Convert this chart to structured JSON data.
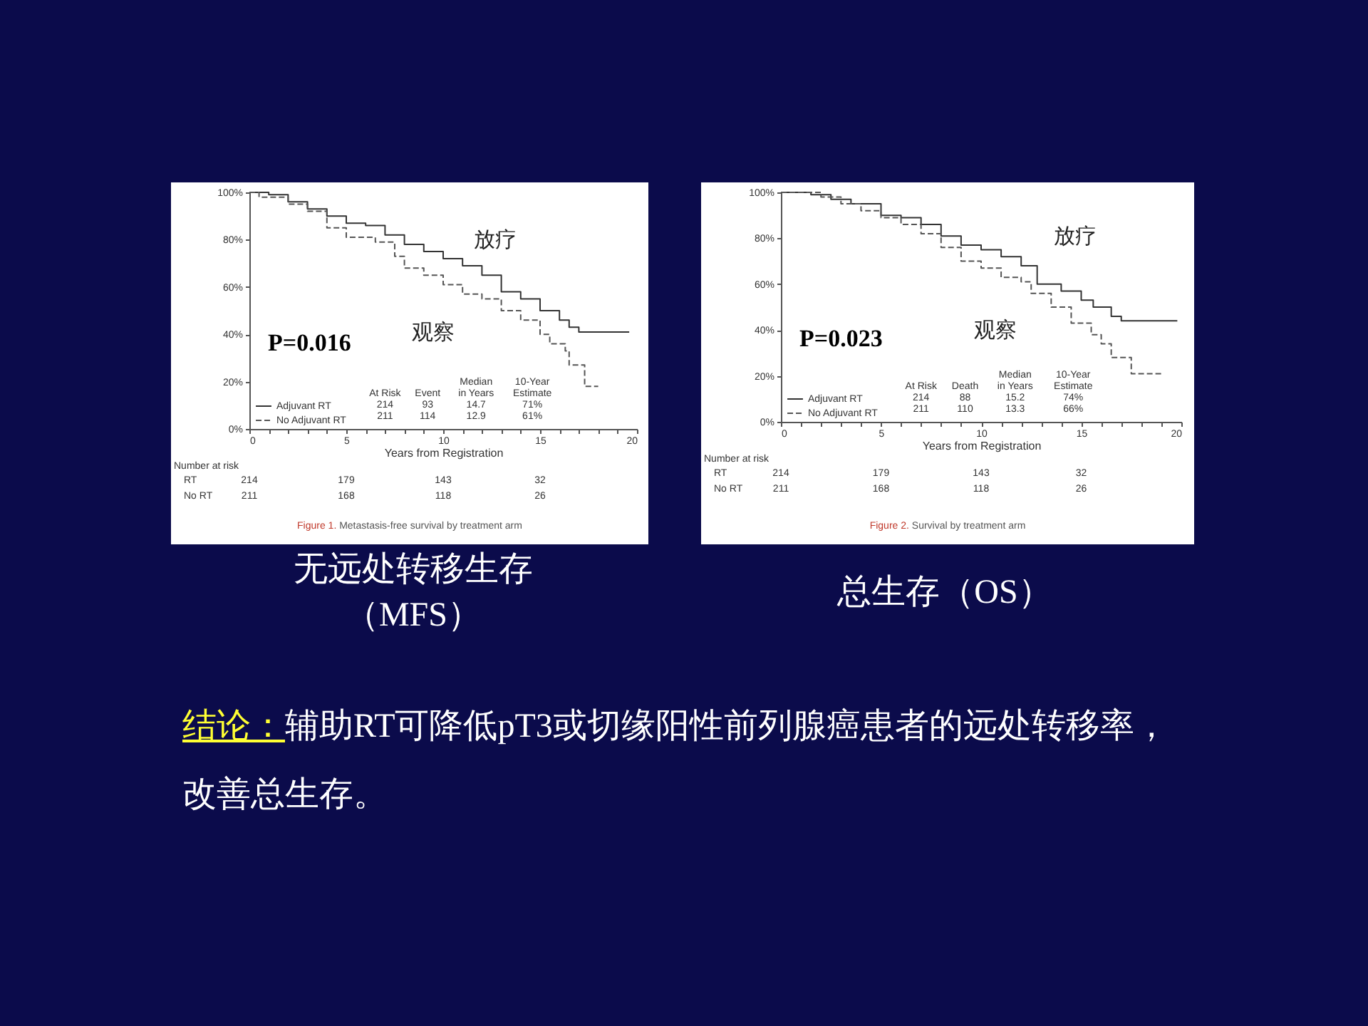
{
  "chart_data": [
    {
      "type": "step",
      "xlabel": "Years from Registration",
      "xlim": [
        0,
        20
      ],
      "xticks": [
        0,
        {
          "value": 1,
          "label": null
        },
        {
          "value": 2,
          "label": null
        },
        {
          "value": 3,
          "label": null
        },
        {
          "value": 4,
          "label": null
        },
        5,
        {
          "value": 6,
          "label": null
        },
        {
          "value": 7,
          "label": null
        },
        {
          "value": 8,
          "label": null
        },
        {
          "value": 9,
          "label": null
        },
        10,
        {
          "value": 11,
          "label": null
        },
        {
          "value": 12,
          "label": null
        },
        {
          "value": 13,
          "label": null
        },
        {
          "value": 14,
          "label": null
        },
        15,
        {
          "value": 16,
          "label": null
        },
        {
          "value": 17,
          "label": null
        },
        {
          "value": 18,
          "label": null
        },
        {
          "value": 19,
          "label": null
        },
        20
      ],
      "ylim": [
        0,
        100
      ],
      "yticks": [
        {
          "value": 0,
          "label": "0%"
        },
        {
          "value": 20,
          "label": "20%"
        },
        {
          "value": 40,
          "label": "40%"
        },
        {
          "value": 60,
          "label": "60%"
        },
        {
          "value": 80,
          "label": "80%"
        },
        {
          "value": 100,
          "label": "100%"
        }
      ],
      "grid": false,
      "legend": "bottom left",
      "series": [
        {
          "name": "Adjuvant RT",
          "color": "#333333",
          "line_style": "solid",
          "x": [
            0,
            1,
            2,
            3,
            4,
            5,
            6,
            7,
            8,
            9,
            10,
            11,
            12,
            13,
            14,
            15,
            16,
            16.5,
            17,
            19.6
          ],
          "values": [
            100,
            99,
            96,
            93,
            90,
            87,
            86,
            82,
            78,
            75,
            72,
            69,
            65,
            58,
            55,
            50,
            46,
            43,
            41,
            41
          ]
        },
        {
          "name": "No Adjuvant RT",
          "color": "#555555",
          "line_style": "dashed",
          "x": [
            0,
            0.5,
            2,
            3,
            4,
            5,
            6.5,
            7.5,
            8,
            9,
            10,
            11,
            12,
            13,
            14,
            15,
            15.5,
            16.3,
            16.5,
            17.3,
            18
          ],
          "values": [
            100,
            98,
            95,
            92,
            85,
            81,
            79,
            73,
            68,
            65,
            61,
            57,
            55,
            50,
            46,
            40,
            36,
            33,
            27,
            18,
            18
          ]
        }
      ],
      "annotations": [
        "放疗",
        "观察",
        "P=0.016",
        "At Risk",
        "Event",
        "Median in Years",
        "10-Year Estimate",
        "214",
        "93",
        "14.7",
        "71%",
        "211",
        "114",
        "12.9",
        "61%",
        "Number at risk",
        "RT",
        "214",
        "179",
        "143",
        "32",
        "No RT",
        "211",
        "168",
        "118",
        "26",
        "Figure 1. Metastasis-free survival by treatment arm",
        "无远处转移生存（MFS）",
        "结论：",
        "辅助RT可降低pT3或切缘阳性前列腺癌患者的远处转移率，改善总生存。"
      ]
    },
    {
      "type": "step",
      "xlabel": "Years from Registration",
      "xlim": [
        0,
        20
      ],
      "xticks": [
        0,
        {
          "value": 1,
          "label": null
        },
        {
          "value": 2,
          "label": null
        },
        {
          "value": 3,
          "label": null
        },
        {
          "value": 4,
          "label": null
        },
        5,
        {
          "value": 6,
          "label": null
        },
        {
          "value": 7,
          "label": null
        },
        {
          "value": 8,
          "label": null
        },
        {
          "value": 9,
          "label": null
        },
        10,
        {
          "value": 11,
          "label": null
        },
        {
          "value": 12,
          "label": null
        },
        {
          "value": 13,
          "label": null
        },
        {
          "value": 14,
          "label": null
        },
        15,
        {
          "value": 16,
          "label": null
        },
        {
          "value": 17,
          "label": null
        },
        {
          "value": 18,
          "label": null
        },
        {
          "value": 19,
          "label": null
        },
        20
      ],
      "ylim": [
        0,
        100
      ],
      "yticks": [
        {
          "value": 0,
          "label": "0%"
        },
        {
          "value": 20,
          "label": "20%"
        },
        {
          "value": 40,
          "label": "40%"
        },
        {
          "value": 60,
          "label": "60%"
        },
        {
          "value": 80,
          "label": "80%"
        },
        {
          "value": 100,
          "label": "100%"
        }
      ],
      "grid": false,
      "legend": "bottom left",
      "series": [
        {
          "name": "Adjuvant RT",
          "color": "#333333",
          "line_style": "solid",
          "x": [
            0,
            1.5,
            2.5,
            3.5,
            5,
            6,
            7,
            8,
            9,
            10,
            11,
            12,
            12.8,
            14,
            15,
            15.6,
            16.5,
            17,
            19.8
          ],
          "values": [
            100,
            99,
            97,
            95,
            90,
            89,
            86,
            81,
            77,
            75,
            72,
            68,
            60,
            57,
            53,
            50,
            46,
            44,
            44
          ]
        },
        {
          "name": "No Adjuvant RT",
          "color": "#555555",
          "line_style": "dashed",
          "x": [
            0,
            2,
            3,
            4,
            5,
            6,
            7,
            8,
            9,
            10,
            11,
            12,
            12.5,
            13.5,
            14.5,
            15.5,
            16,
            16.5,
            17.5,
            19
          ],
          "values": [
            100,
            98,
            95,
            92,
            89,
            86,
            82,
            76,
            70,
            67,
            63,
            61,
            56,
            50,
            43,
            38,
            34,
            28,
            21,
            21
          ]
        }
      ],
      "annotations": [
        "放疗",
        "观察",
        "P=0.023",
        "At Risk",
        "Death",
        "Median in Years",
        "10-Year Estimate",
        "214",
        "88",
        "15.2",
        "74%",
        "211",
        "110",
        "13.3",
        "66%",
        "Number at risk",
        "RT",
        "214",
        "179",
        "143",
        "32",
        "No RT",
        "211",
        "168",
        "118",
        "26",
        "Figure 2. Survival by treatment arm",
        "总生存（OS）"
      ]
    }
  ]
}
